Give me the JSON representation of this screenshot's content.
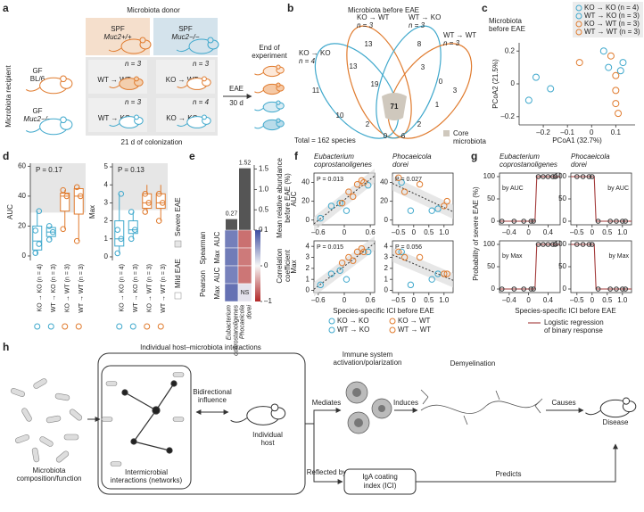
{
  "panel_labels": [
    "a",
    "b",
    "c",
    "d",
    "e",
    "f",
    "g",
    "h"
  ],
  "a": {
    "donor_title": "Microbiota donor",
    "recipient_title": "Microbiota recipient",
    "donors": [
      [
        "SPF",
        "Muc2+/+"
      ],
      [
        "SPF",
        "Muc2−/−"
      ]
    ],
    "recipients": [
      [
        "GF",
        "BL/6"
      ],
      [
        "GF",
        "Muc2−/−"
      ]
    ],
    "groups": [
      {
        "label": "WT → WT",
        "n": "n = 3"
      },
      {
        "label": "KO → WT",
        "n": "n = 3"
      },
      {
        "label": "WT → KO",
        "n": "n = 3"
      },
      {
        "label": "KO → KO",
        "n": "n = 4"
      }
    ],
    "eae": "EAE",
    "duration": "30 d",
    "end": [
      "End of",
      "experiment"
    ],
    "colonization": "21 d of colonization"
  },
  "b": {
    "title": "Microbiota before EAE",
    "sets": [
      {
        "label": "KO → KO",
        "n": "n = 4"
      },
      {
        "label": "KO → WT",
        "n": "n = 3"
      },
      {
        "label": "WT → KO",
        "n": "n = 3"
      },
      {
        "label": "WT → WT",
        "n": "n = 3"
      }
    ],
    "regions": [
      "11",
      "13",
      "8",
      "3",
      "13",
      "19",
      "3",
      "0",
      "1",
      "10",
      "71",
      "2",
      "2",
      "6",
      "0"
    ],
    "total": "Total = 162 species",
    "core": [
      "Core",
      "microbiota"
    ]
  },
  "chart_data": [
    {
      "type": "scatter",
      "title": [
        "Microbiota",
        "before EAE"
      ],
      "xlabel": "PCoA1 (32.7%)",
      "ylabel": "PCoA2 (21.5%)",
      "xlim": [
        -0.3,
        0.18
      ],
      "ylim": [
        -0.25,
        0.25
      ],
      "xticks": [
        {
          "value": -0.2,
          "label": "–0.2"
        },
        {
          "value": -0.1,
          "label": "–0.1"
        },
        0,
        0.1
      ],
      "yticks": [
        {
          "value": -0.2,
          "label": "–0.2"
        },
        0,
        0.2
      ],
      "series": [
        {
          "name": "KO → KO (n = 4)",
          "color": "#3fa8cc",
          "x": [
            -0.26,
            -0.23,
            -0.17,
            0.05
          ],
          "y": [
            -0.1,
            0.04,
            -0.03,
            0.2
          ]
        },
        {
          "name": "WT → KO (n = 3)",
          "color": "#3fa8cc",
          "x": [
            0.07,
            0.12,
            0.13
          ],
          "y": [
            0.1,
            0.08,
            0.13
          ]
        },
        {
          "name": "KO → WT (n = 3)",
          "color": "#e07b2e",
          "x": [
            -0.05,
            0.08,
            0.1
          ],
          "y": [
            0.13,
            0.17,
            0.05
          ]
        },
        {
          "name": "WT → WT (n = 3)",
          "color": "#e07b2e",
          "x": [
            0.1,
            0.1,
            0.11
          ],
          "y": [
            -0.04,
            -0.12,
            -0.18
          ]
        }
      ]
    },
    {
      "type": "box",
      "categories": [
        "KO → KO (n = 4)",
        "WT → KO (n = 3)",
        "KO → WT (n = 3)",
        "WT → WT (n = 3)"
      ],
      "colors": [
        "#3fa8cc",
        "#3fa8cc",
        "#e07b2e",
        "#e07b2e"
      ],
      "legend": [
        "Severe EAE",
        "Mild EAE"
      ],
      "panels": [
        {
          "ylabel": "AUC",
          "annotation": "P = 0.17",
          "ylim": [
            -3,
            62
          ],
          "yticks": [
            0,
            20,
            40,
            60
          ],
          "severe_threshold": 29,
          "boxes": [
            {
              "min": 1,
              "q1": 4,
              "median": 10,
              "q3": 20,
              "max": 30,
              "points": [
                2,
                8,
                17,
                30
              ]
            },
            {
              "min": 11,
              "q1": 13,
              "median": 16,
              "q3": 19,
              "max": 20,
              "points": [
                11,
                16,
                20
              ]
            },
            {
              "min": 18,
              "q1": 30,
              "median": 40,
              "q3": 42,
              "max": 44,
              "points": [
                18,
                40,
                44
              ]
            },
            {
              "min": 10,
              "q1": 28,
              "median": 40,
              "q3": 45,
              "max": 46,
              "points": [
                10,
                40,
                46
              ]
            }
          ]
        },
        {
          "ylabel": "Max",
          "annotation": "P = 0.13",
          "ylim": [
            -0.2,
            5.2
          ],
          "yticks": [
            0,
            1,
            2,
            3,
            4,
            5
          ],
          "severe_threshold": 2.6,
          "boxes": [
            {
              "min": 0.2,
              "q1": 0.6,
              "median": 1,
              "q3": 2,
              "max": 3.5,
              "points": [
                0.2,
                1,
                1.5,
                3.5
              ]
            },
            {
              "min": 1,
              "q1": 1.3,
              "median": 1.5,
              "q3": 2,
              "max": 2.5,
              "points": [
                1,
                1.5,
                2.5
              ]
            },
            {
              "min": 2.5,
              "q1": 2.7,
              "median": 3,
              "q3": 3.5,
              "max": 4,
              "points": [
                2.5,
                3,
                3.5
              ]
            },
            {
              "min": 2,
              "q1": 2.7,
              "median": 3,
              "q3": 3.5,
              "max": 4,
              "points": [
                2,
                3,
                3.5
              ]
            }
          ]
        }
      ]
    },
    {
      "type": "bar_heatmap",
      "categories": [
        [
          "Eubacterium",
          "coprostanoligenes"
        ],
        [
          "Phocaeicola",
          "dorei"
        ]
      ],
      "values": [
        0.27,
        1.52
      ],
      "color": "#555555",
      "ylabel": [
        "Mean relative abundance",
        "before EAE (%)"
      ],
      "ylim": [
        0,
        1.6
      ],
      "yticks": [
        0,
        0.5,
        {
          "value": 1,
          "label": "1.0"
        },
        1.5
      ],
      "heatmap": {
        "groups": [
          {
            "name": "Spearman",
            "metrics": [
              "AUC",
              "Max"
            ]
          },
          {
            "name": "Pearson",
            "metrics": [
              "AUC",
              "Max"
            ]
          }
        ],
        "values": [
          [
            0.7,
            -0.65
          ],
          [
            0.72,
            -0.6
          ],
          [
            0.68,
            -0.62
          ],
          [
            0.78,
            null
          ]
        ],
        "ns_label": "NS",
        "clim": [
          -1,
          1
        ],
        "cticks": [
          1,
          0,
          {
            "value": -1,
            "label": "–1"
          }
        ],
        "clabel": [
          "Correlation",
          "coefficient"
        ]
      }
    },
    {
      "type": "scatter_grid",
      "columns": [
        [
          "Eubacterium",
          "coprostanoligenes"
        ],
        [
          "Phocaeicola",
          "dorei"
        ]
      ],
      "rows": [
        "AUC",
        "Max"
      ],
      "xlabel": "Species-specific ICI before EAE",
      "groups": [
        {
          "name": "KO → KO",
          "color": "#3fa8cc"
        },
        {
          "name": "WT → KO",
          "color": "#3fa8cc"
        },
        {
          "name": "KO → WT",
          "color": "#e07b2e"
        },
        {
          "name": "WT → WT",
          "color": "#e07b2e"
        }
      ],
      "panels": [
        {
          "annotation": "P = 0.013",
          "xlim": [
            -0.7,
            0.7
          ],
          "xticks": [
            {
              "value": -0.6,
              "label": "–0.6"
            },
            0,
            0.6
          ],
          "ylim": [
            -5,
            50
          ],
          "yticks": [
            0,
            20,
            40
          ],
          "series": [
            {
              "x": [
                -0.55,
                -0.3,
                0.05
              ],
              "y": [
                2,
                15,
                10
              ]
            },
            {
              "x": [
                -0.1,
                0.55
              ],
              "y": [
                18,
                37
              ]
            },
            {
              "x": [
                0.1,
                0.4,
                0.3
              ],
              "y": [
                30,
                42,
                38
              ]
            },
            {
              "x": [
                -0.05,
                0.2,
                0.45
              ],
              "y": [
                18,
                25,
                40
              ]
            }
          ]
        },
        {
          "annotation": "P = 0.027",
          "xlim": [
            -0.7,
            1.3
          ],
          "xticks": [
            {
              "value": -0.5,
              "label": "–0.5"
            },
            0,
            0.5,
            {
              "value": 1,
              "label": "1.0"
            }
          ],
          "ylim": [
            -5,
            50
          ],
          "yticks": [
            0,
            20,
            40
          ],
          "series": [
            {
              "x": [
                -0.4,
                0.6
              ],
              "y": [
                40,
                10
              ]
            },
            {
              "x": [
                -0.1,
                0.8
              ],
              "y": [
                10,
                12
              ]
            },
            {
              "x": [
                -0.5,
                0.2
              ],
              "y": [
                45,
                38
              ]
            },
            {
              "x": [
                -0.3,
                1.0,
                1.1
              ],
              "y": [
                30,
                15,
                20
              ]
            }
          ]
        },
        {
          "annotation": "P = 0.015",
          "xlim": [
            -0.7,
            0.7
          ],
          "xticks": [
            {
              "value": -0.6,
              "label": "–0.6"
            },
            0,
            0.6
          ],
          "ylim": [
            -0.2,
            4.5
          ],
          "yticks": [
            0,
            1,
            2,
            3,
            4
          ],
          "series": [
            {
              "x": [
                -0.55,
                -0.3,
                0.05
              ],
              "y": [
                0.5,
                1.5,
                1
              ]
            },
            {
              "x": [
                -0.1,
                0.55
              ],
              "y": [
                1.8,
                3.5
              ]
            },
            {
              "x": [
                0.1,
                0.4,
                0.3
              ],
              "y": [
                3,
                3.8,
                3.5
              ]
            },
            {
              "x": [
                -0.05,
                0.2,
                0.45
              ],
              "y": [
                2.5,
                2.7,
                3.5
              ]
            }
          ]
        },
        {
          "annotation": "P = 0.056",
          "xlim": [
            -0.7,
            1.3
          ],
          "xticks": [
            {
              "value": -0.5,
              "label": "–0.5"
            },
            0,
            0.5,
            {
              "value": 1,
              "label": "1.0"
            }
          ],
          "ylim": [
            -0.2,
            4.5
          ],
          "yticks": [
            0,
            1,
            2,
            3,
            4
          ],
          "series": [
            {
              "x": [
                -0.4,
                0.6
              ],
              "y": [
                3.5,
                1
              ]
            },
            {
              "x": [
                -0.1,
                0.8
              ],
              "y": [
                0.5,
                1.5
              ]
            },
            {
              "x": [
                -0.5,
                0.2
              ],
              "y": [
                3.5,
                3
              ]
            },
            {
              "x": [
                -0.3,
                1.0,
                1.1
              ],
              "y": [
                3,
                1.5,
                1.5
              ]
            }
          ]
        }
      ]
    },
    {
      "type": "logistic_grid",
      "columns": [
        [
          "Eubacterium",
          "coprostanoligenes"
        ],
        [
          "Phocaeicola",
          "dorei"
        ]
      ],
      "ylabel": "Probability of severe EAE (%)",
      "xlabel": "Species-specific ICI before EAE",
      "legend": [
        "Logistic regression",
        "of binary response"
      ],
      "curve_color": "#a33a3a",
      "panels": [
        {
          "annotation": "by AUC",
          "xlim": [
            -0.6,
            0.65
          ],
          "xticks": [
            {
              "value": -0.4,
              "label": "–0.4"
            },
            0,
            0.4
          ],
          "ylim": [
            -8,
            108
          ],
          "yticks": [
            0,
            50,
            100
          ],
          "x": [
            -0.55,
            -0.3,
            -0.1,
            0.05,
            0.1,
            0.2,
            0.3,
            0.4,
            0.5,
            0.55
          ],
          "y": [
            0,
            0,
            0,
            0,
            0,
            100,
            100,
            100,
            100,
            100
          ]
        },
        {
          "annotation": "by AUC",
          "xlim": [
            -0.7,
            1.3
          ],
          "xticks": [
            {
              "value": -0.5,
              "label": "–0.5"
            },
            0,
            0.5,
            {
              "value": 1,
              "label": "1.0"
            }
          ],
          "ylim": [
            -8,
            108
          ],
          "yticks": [
            0,
            50,
            100
          ],
          "x": [
            -0.5,
            -0.3,
            -0.1,
            0,
            0.2,
            0.6,
            0.8,
            1.0,
            1.1
          ],
          "y": [
            100,
            100,
            100,
            100,
            0,
            0,
            0,
            0,
            0
          ]
        },
        {
          "annotation": "by Max",
          "xlim": [
            -0.6,
            0.65
          ],
          "xticks": [
            {
              "value": -0.4,
              "label": "–0.4"
            },
            0,
            0.4
          ],
          "ylim": [
            -8,
            108
          ],
          "yticks": [
            0,
            50,
            100
          ],
          "x": [
            -0.55,
            -0.3,
            -0.1,
            0.05,
            0.1,
            0.2,
            0.3,
            0.4,
            0.5,
            0.55
          ],
          "y": [
            0,
            0,
            0,
            0,
            0,
            100,
            100,
            100,
            100,
            100
          ]
        },
        {
          "annotation": "by Max",
          "xlim": [
            -0.7,
            1.3
          ],
          "xticks": [
            {
              "value": -0.5,
              "label": "–0.5"
            },
            0,
            0.5,
            {
              "value": 1,
              "label": "1.0"
            }
          ],
          "ylim": [
            -8,
            108
          ],
          "yticks": [
            0,
            50,
            100
          ],
          "x": [
            -0.5,
            -0.3,
            -0.1,
            0,
            0.2,
            0.6,
            0.8,
            1.0,
            1.1
          ],
          "y": [
            100,
            100,
            100,
            100,
            0,
            0,
            0,
            0,
            0
          ]
        }
      ]
    }
  ],
  "h": {
    "interactions": "Individual host–microbiota interactions",
    "composition": [
      "Microbiota",
      "composition/function"
    ],
    "intermicrobial": [
      "Intermicrobial",
      "interactions (networks)"
    ],
    "bidirectional": [
      "Bidirectional",
      "influence"
    ],
    "host": [
      "Individual",
      "host"
    ],
    "mediates": "Mediates",
    "reflected": "Reflected by",
    "immune": [
      "Immune system",
      "activation/polarization"
    ],
    "induces": "Induces",
    "demyelination": "Demyelination",
    "causes": "Causes",
    "disease": "Disease",
    "ici": [
      "IgA coating",
      "index (ICI)"
    ],
    "predicts": "Predicts"
  }
}
